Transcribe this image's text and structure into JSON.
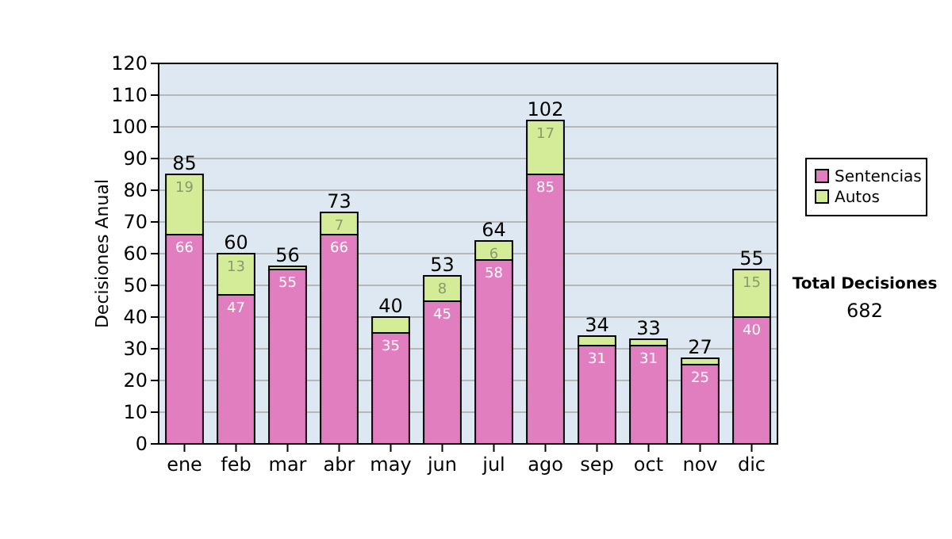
{
  "chart_data": {
    "type": "bar",
    "stacked": true,
    "ylabel": "Decisiones Anual",
    "categories": [
      "ene",
      "feb",
      "mar",
      "abr",
      "may",
      "jun",
      "jul",
      "ago",
      "sep",
      "oct",
      "nov",
      "dic"
    ],
    "series": [
      {
        "name": "Sentencias",
        "color": "#e07ec0",
        "values": [
          66,
          47,
          55,
          66,
          35,
          45,
          58,
          85,
          31,
          31,
          25,
          40
        ],
        "value_labels": [
          "66",
          "47",
          "55",
          "66",
          "35",
          "45",
          "58",
          "85",
          "31",
          "31",
          "25",
          "40"
        ]
      },
      {
        "name": "Autos",
        "color": "#d4ec98",
        "values": [
          19,
          13,
          1,
          7,
          5,
          8,
          6,
          17,
          3,
          2,
          2,
          15
        ],
        "value_labels": [
          "19",
          "13",
          null,
          "7",
          null,
          "8",
          "6",
          "17",
          null,
          null,
          null,
          "15"
        ]
      }
    ],
    "totals": [
      "85",
      "60",
      "56",
      "73",
      "40",
      "53",
      "64",
      "102",
      "34",
      "33",
      "27",
      "55"
    ],
    "ylim": [
      0,
      120
    ],
    "yticks": [
      0,
      10,
      20,
      30,
      40,
      50,
      60,
      70,
      80,
      90,
      100,
      110,
      120
    ],
    "grid": "y",
    "legend": "right",
    "annotations": [
      "Total Decisiones",
      "682"
    ]
  }
}
